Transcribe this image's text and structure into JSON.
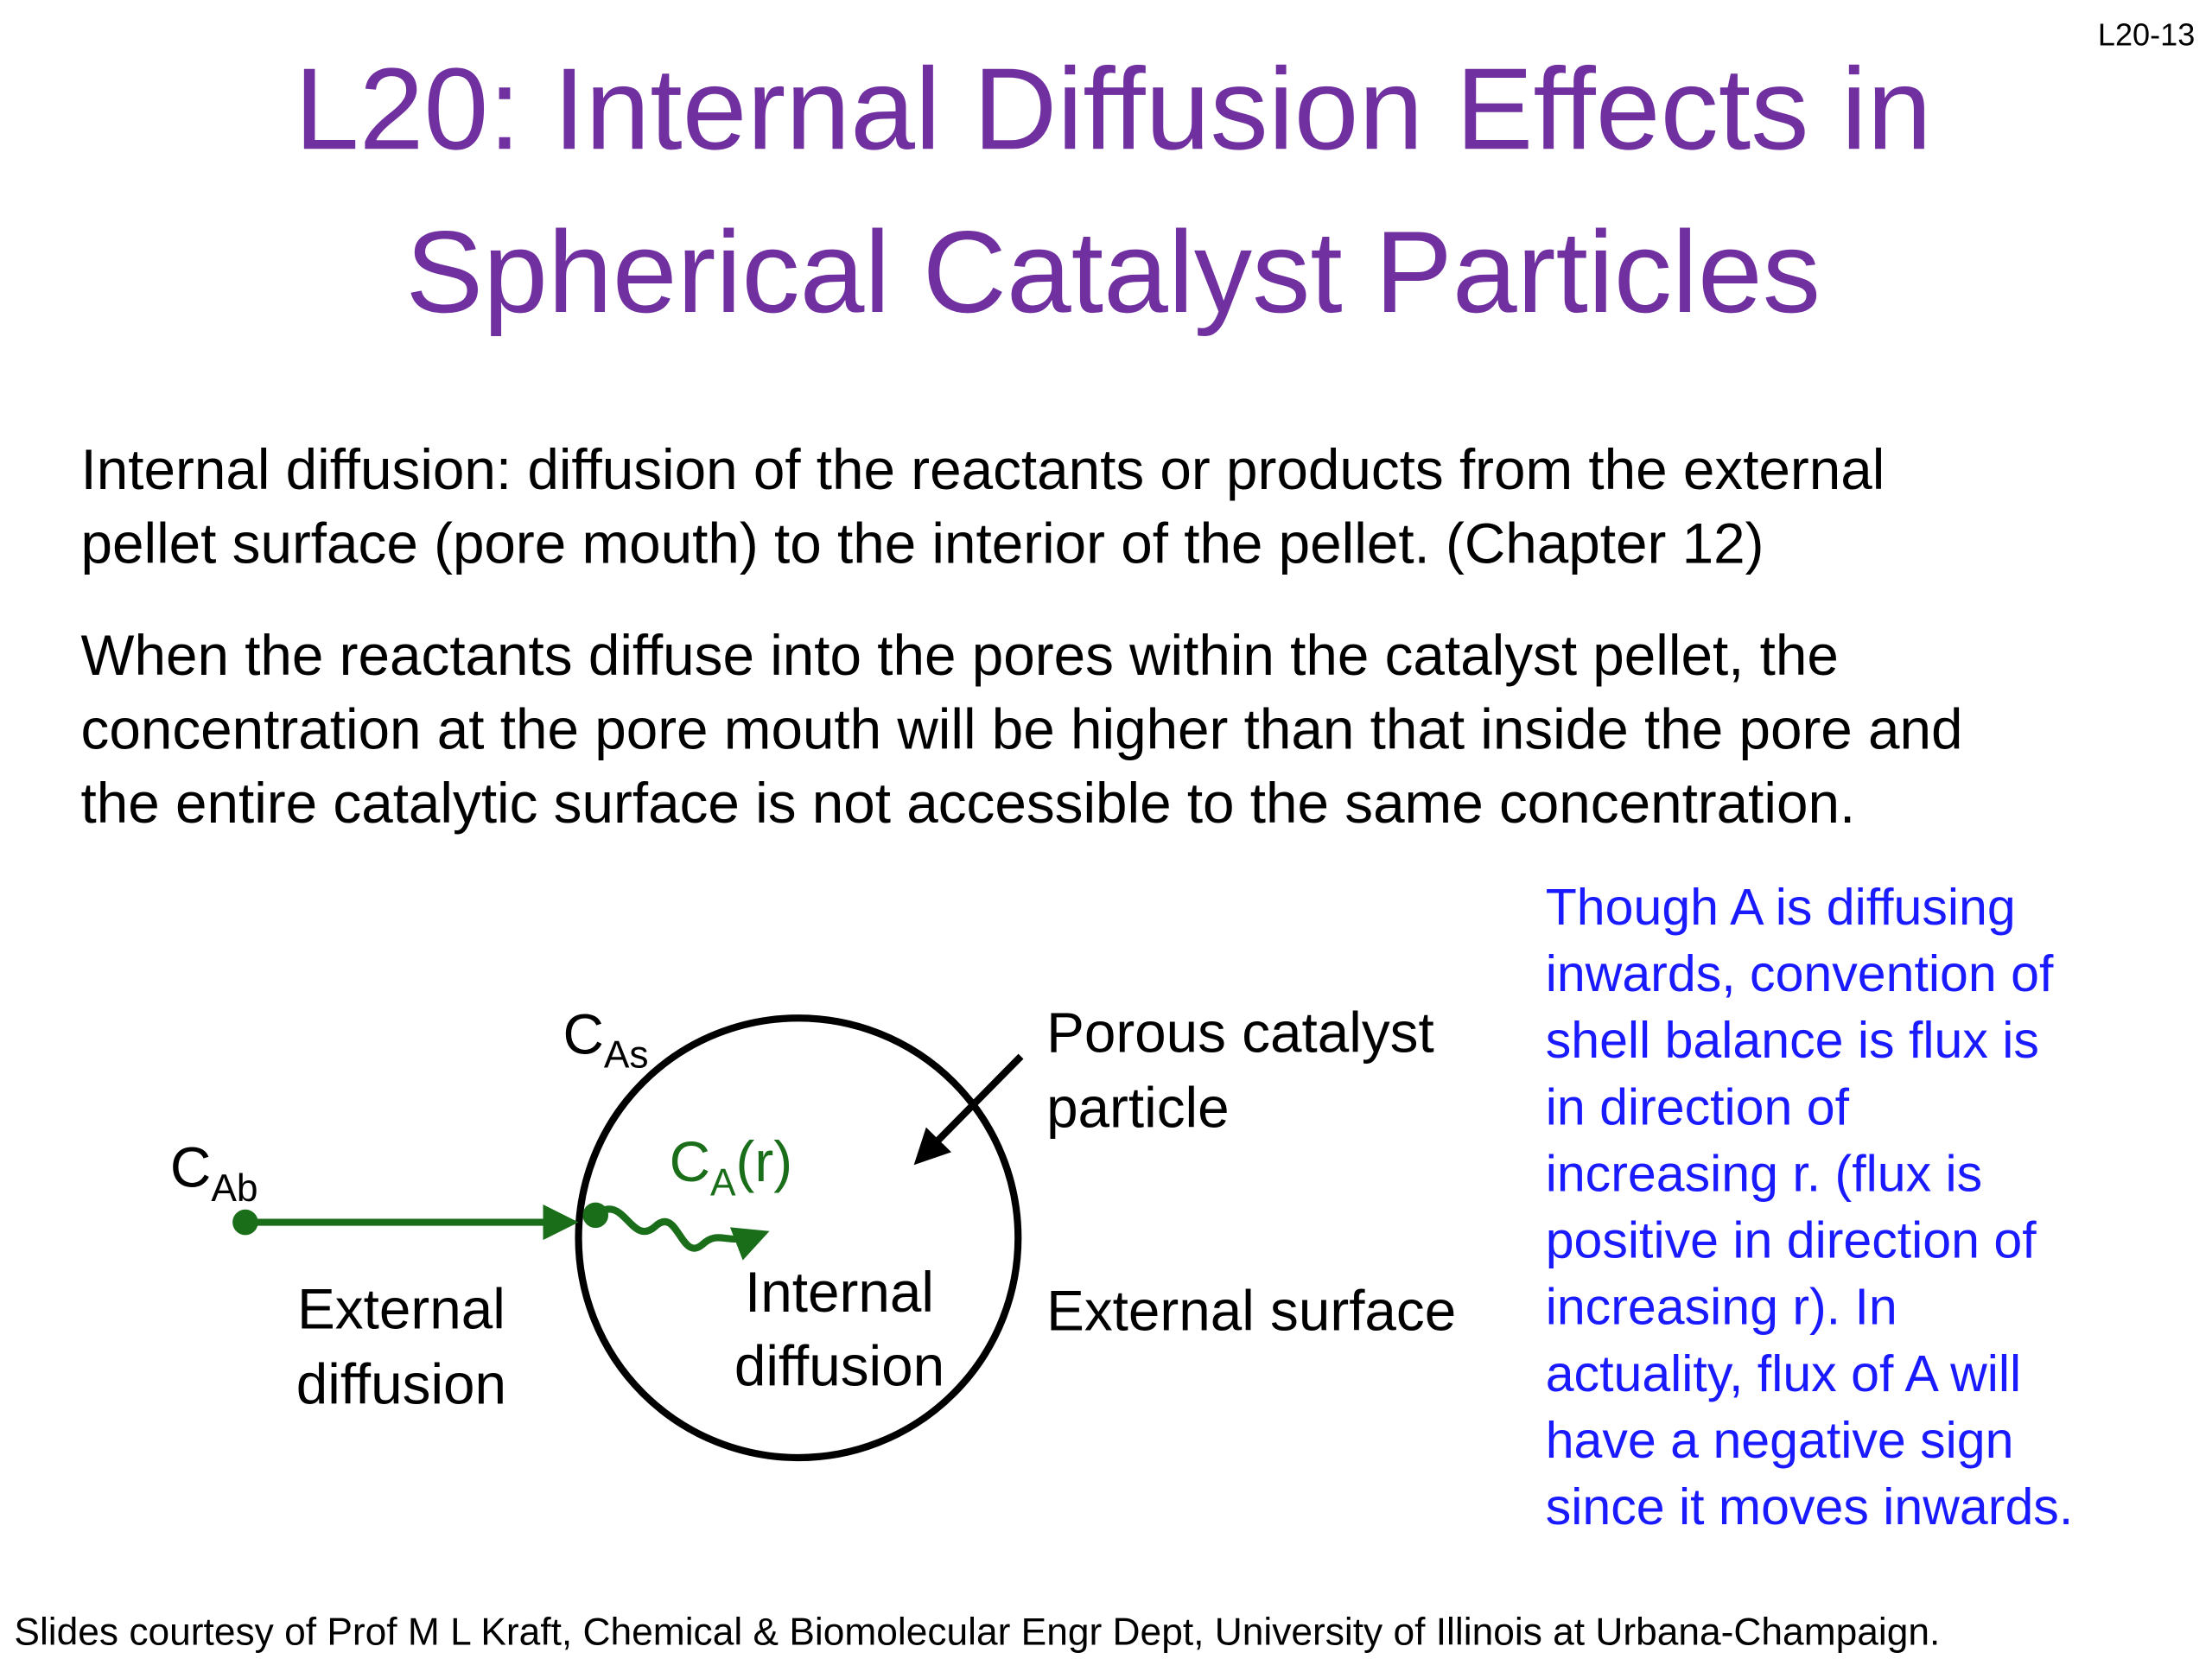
{
  "page_number": "L20-13",
  "title": {
    "lines": [
      "L20: Internal Diffusion Effects in",
      "Spherical Catalyst Particles"
    ]
  },
  "paragraphs": [
    {
      "lines": [
        "Internal diffusion: diffusion of the reactants or products from the external",
        "pellet surface (pore mouth) to the interior of the pellet. (Chapter 12)"
      ]
    },
    {
      "lines": [
        "When the reactants diffuse into the pores within the catalyst pellet, the",
        "concentration at the pore mouth will be higher than that inside the pore and",
        "the entire catalytic surface is not accessible to the same concentration."
      ]
    }
  ],
  "diagram": {
    "c_ab": {
      "main": "C",
      "sub": "Ab"
    },
    "c_as": {
      "main": "C",
      "sub": "As"
    },
    "c_a_r": {
      "main": "C",
      "sub": "A",
      "suffix": "(r)"
    },
    "external_diffusion": {
      "lines": [
        "External",
        "diffusion"
      ]
    },
    "internal_diffusion": {
      "lines": [
        "Internal",
        "diffusion"
      ]
    },
    "porous_particle": {
      "lines": [
        "Porous catalyst",
        "particle"
      ]
    },
    "external_surface": "External surface"
  },
  "note": {
    "lines": [
      "Though A is diffusing",
      "inwards, convention of",
      "shell balance is flux is",
      "in direction of",
      "increasing r. (flux is",
      "positive in direction of",
      "increasing r).  In",
      "actuality, flux of A will",
      "have a negative sign",
      "since it moves inwards."
    ]
  },
  "footer": "Slides courtesy of Prof M L Kraft, Chemical & Biomolecular Engr Dept, University of Illinois at Urbana-Champaign."
}
